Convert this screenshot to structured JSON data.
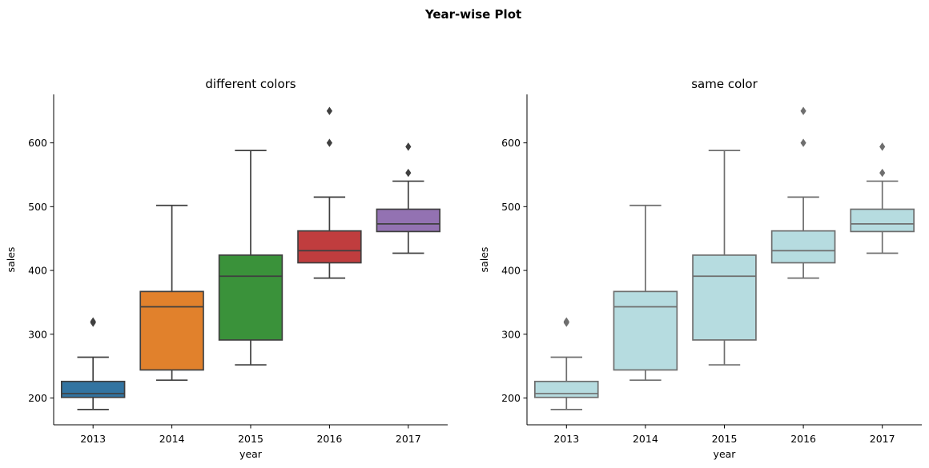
{
  "figure": {
    "suptitle": "Year-wise Plot"
  },
  "chart_data": [
    {
      "type": "box",
      "title": "different colors",
      "xlabel": "year",
      "ylabel": "sales",
      "categories": [
        "2013",
        "2014",
        "2015",
        "2016",
        "2017"
      ],
      "ylim": [
        158,
        676
      ],
      "yticks": [
        200,
        300,
        400,
        500,
        600
      ],
      "color_mode": "per-category",
      "colors": [
        "#3274a1",
        "#e1812c",
        "#3a923a",
        "#c03d3e",
        "#9372b2"
      ],
      "edge_color": "#3f3f3f",
      "boxes": [
        {
          "whislo": 182,
          "q1": 201,
          "med": 207,
          "q3": 226,
          "whishi": 264,
          "fliers": [
            318,
            320
          ]
        },
        {
          "whislo": 228,
          "q1": 244,
          "med": 343,
          "q3": 367,
          "whishi": 502,
          "fliers": []
        },
        {
          "whislo": 252,
          "q1": 291,
          "med": 391,
          "q3": 424,
          "whishi": 588,
          "fliers": []
        },
        {
          "whislo": 388,
          "q1": 412,
          "med": 431,
          "q3": 462,
          "whishi": 515,
          "fliers": [
            600,
            650
          ]
        },
        {
          "whislo": 427,
          "q1": 461,
          "med": 473,
          "q3": 496,
          "whishi": 540,
          "fliers": [
            553,
            594
          ]
        }
      ]
    },
    {
      "type": "box",
      "title": "same color",
      "xlabel": "year",
      "ylabel": "sales",
      "categories": [
        "2013",
        "2014",
        "2015",
        "2016",
        "2017"
      ],
      "ylim": [
        158,
        676
      ],
      "yticks": [
        200,
        300,
        400,
        500,
        600
      ],
      "color_mode": "single",
      "colors": [
        "#b6dce0",
        "#b6dce0",
        "#b6dce0",
        "#b6dce0",
        "#b6dce0"
      ],
      "edge_color": "#6e6e6e",
      "boxes": [
        {
          "whislo": 182,
          "q1": 201,
          "med": 207,
          "q3": 226,
          "whishi": 264,
          "fliers": [
            318,
            320
          ]
        },
        {
          "whislo": 228,
          "q1": 244,
          "med": 343,
          "q3": 367,
          "whishi": 502,
          "fliers": []
        },
        {
          "whislo": 252,
          "q1": 291,
          "med": 391,
          "q3": 424,
          "whishi": 588,
          "fliers": []
        },
        {
          "whislo": 388,
          "q1": 412,
          "med": 431,
          "q3": 462,
          "whishi": 515,
          "fliers": [
            600,
            650
          ]
        },
        {
          "whislo": 427,
          "q1": 461,
          "med": 473,
          "q3": 496,
          "whishi": 540,
          "fliers": [
            553,
            594
          ]
        }
      ]
    }
  ]
}
